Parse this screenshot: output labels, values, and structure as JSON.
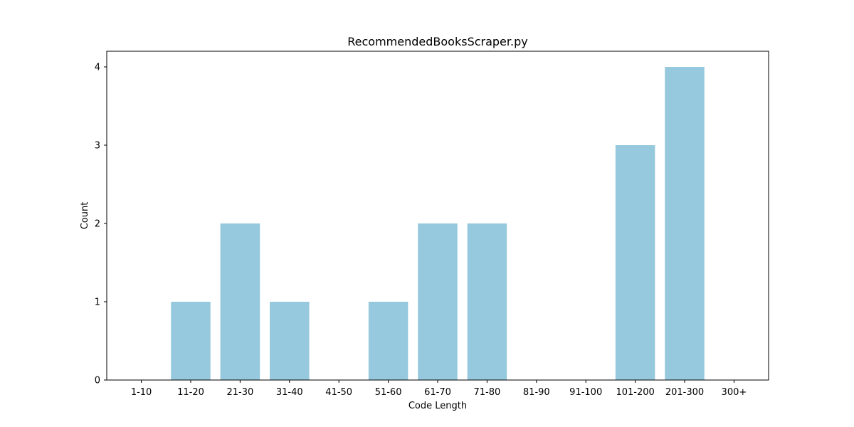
{
  "chart_data": {
    "type": "bar",
    "title": "RecommendedBooksScraper.py",
    "xlabel": "Code Length",
    "ylabel": "Count",
    "categories": [
      "1-10",
      "11-20",
      "21-30",
      "31-40",
      "41-50",
      "51-60",
      "61-70",
      "71-80",
      "81-90",
      "91-100",
      "101-200",
      "201-300",
      "300+"
    ],
    "values": [
      0,
      1,
      2,
      1,
      0,
      1,
      2,
      2,
      0,
      0,
      3,
      4,
      0
    ],
    "ylim": [
      0,
      4.2
    ],
    "yticks": [
      0,
      1,
      2,
      3,
      4
    ],
    "bar_color": "#96c9dd",
    "grid": false,
    "legend": "none"
  }
}
